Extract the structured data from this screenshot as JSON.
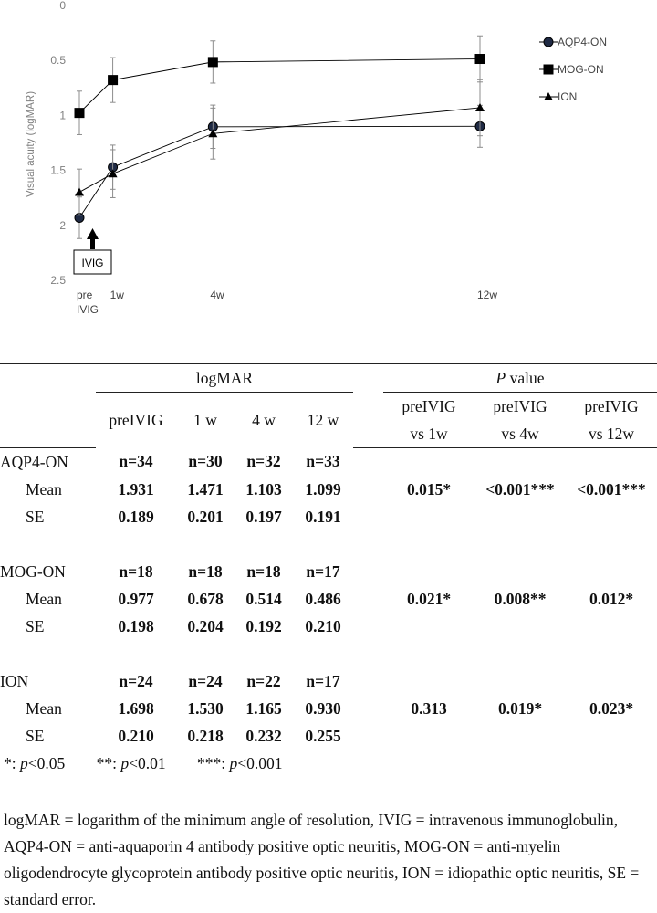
{
  "chart_data": {
    "type": "line",
    "x": [
      0,
      1,
      4,
      12
    ],
    "xticks": [
      "pre\nIVIG",
      "1w",
      "4w",
      "12w"
    ],
    "ylabel": "Visual acuity (logMAR)",
    "yticks": [
      "0",
      "0.5",
      "1",
      "1.5",
      "2",
      "2.5"
    ],
    "ylim": [
      0,
      2.5
    ],
    "y_inverted": true,
    "annotation": "IVIG",
    "legend_position": "right",
    "series": [
      {
        "name": "AQP4-ON",
        "marker": "circle",
        "values": [
          1.931,
          1.471,
          1.103,
          1.099
        ],
        "errors": [
          0.189,
          0.201,
          0.197,
          0.191
        ]
      },
      {
        "name": "MOG-ON",
        "marker": "square",
        "values": [
          0.977,
          0.678,
          0.514,
          0.486
        ],
        "errors": [
          0.198,
          0.204,
          0.192,
          0.21
        ]
      },
      {
        "name": "ION",
        "marker": "triangle",
        "values": [
          1.698,
          1.53,
          1.165,
          0.93
        ],
        "errors": [
          0.21,
          0.218,
          0.232,
          0.255
        ]
      }
    ]
  },
  "table": {
    "group_header_logmar": "logMAR",
    "group_header_p_italic": "P",
    "group_header_p_rest": " value",
    "cols": [
      "preIVIG",
      "1 w",
      "4 w",
      "12 w"
    ],
    "pcols": [
      {
        "l1": "preIVIG",
        "l2": "vs 1w"
      },
      {
        "l1": "preIVIG",
        "l2": "vs 4w"
      },
      {
        "l1": "preIVIG",
        "l2": "vs 12w"
      }
    ],
    "groups": [
      {
        "name": "AQP4-ON",
        "n": [
          "n=34",
          "n=30",
          "n=32",
          "n=33"
        ],
        "mean": [
          "1.931",
          "1.471",
          "1.103",
          "1.099"
        ],
        "se": [
          "0.189",
          "0.201",
          "0.197",
          "0.191"
        ],
        "p": [
          "0.015*",
          "<0.001***",
          "<0.001***"
        ]
      },
      {
        "name": "MOG-ON",
        "n": [
          "n=18",
          "n=18",
          "n=18",
          "n=17"
        ],
        "mean": [
          "0.977",
          "0.678",
          "0.514",
          "0.486"
        ],
        "se": [
          "0.198",
          "0.204",
          "0.192",
          "0.210"
        ],
        "p": [
          "0.021*",
          "0.008**",
          "0.012*"
        ]
      },
      {
        "name": "ION",
        "n": [
          "n=24",
          "n=24",
          "n=22",
          "n=17"
        ],
        "mean": [
          "1.698",
          "1.530",
          "1.165",
          "0.930"
        ],
        "se": [
          "0.210",
          "0.218",
          "0.232",
          "0.255"
        ],
        "p": [
          "0.313",
          "0.019*",
          "0.023*"
        ]
      }
    ],
    "mean_label": "Mean",
    "se_label": "SE"
  },
  "significance": [
    {
      "stars": "*: ",
      "p": "p",
      "rest": "<0.05"
    },
    {
      "stars": "**: ",
      "p": "p",
      "rest": "<0.01"
    },
    {
      "stars": "***: ",
      "p": "p",
      "rest": "<0.001"
    }
  ],
  "footnote": "logMAR = logarithm of the minimum angle of resolution, IVIG = intravenous immunoglobulin, AQP4-ON = anti-aquaporin 4 antibody positive optic neuritis, MOG-ON = anti-myelin oligodendrocyte glycoprotein antibody positive optic neuritis, ION = idiopathic optic neuritis, SE = standard error."
}
